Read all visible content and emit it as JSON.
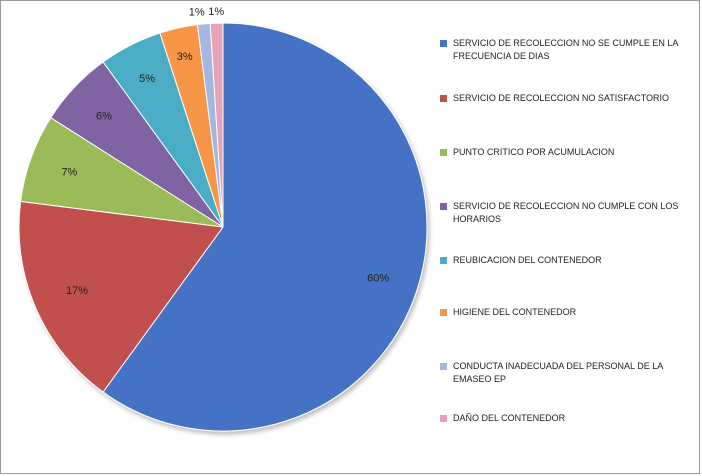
{
  "chart_data": {
    "type": "pie",
    "title": "",
    "start_angle_deg": 0,
    "direction": "clockwise",
    "legend_position": "right",
    "slices": [
      {
        "label": "SERVICIO DE RECOLECCION NO SE CUMPLE EN LA FRECUENCIA DE DIAS",
        "value": 60,
        "display": "60%",
        "color": "#4472C4"
      },
      {
        "label": "SERVICIO DE RECOLECCION NO SATISFACTORIO",
        "value": 17,
        "display": "17%",
        "color": "#C0504D"
      },
      {
        "label": "PUNTO CRITICO POR ACUMULACION",
        "value": 7,
        "display": "7%",
        "color": "#9BBB59"
      },
      {
        "label": "SERVICIO DE RECOLECCION NO CUMPLE CON LOS HORARIOS",
        "value": 6,
        "display": "6%",
        "color": "#8064A2"
      },
      {
        "label": "REUBICACION DEL CONTENEDOR",
        "value": 5,
        "display": "5%",
        "color": "#4BACC6"
      },
      {
        "label": "HIGIENE DEL CONTENEDOR",
        "value": 3,
        "display": "3%",
        "color": "#F79646"
      },
      {
        "label": "CONDUCTA INADECUADA DEL PERSONAL DE LA EMASEO EP",
        "value": 1,
        "display": "1%",
        "color": "#A5B6E0"
      },
      {
        "label": "DAÑO DEL CONTENEDOR",
        "value": 1,
        "display": "1%",
        "color": "#E6A3B8"
      }
    ]
  }
}
